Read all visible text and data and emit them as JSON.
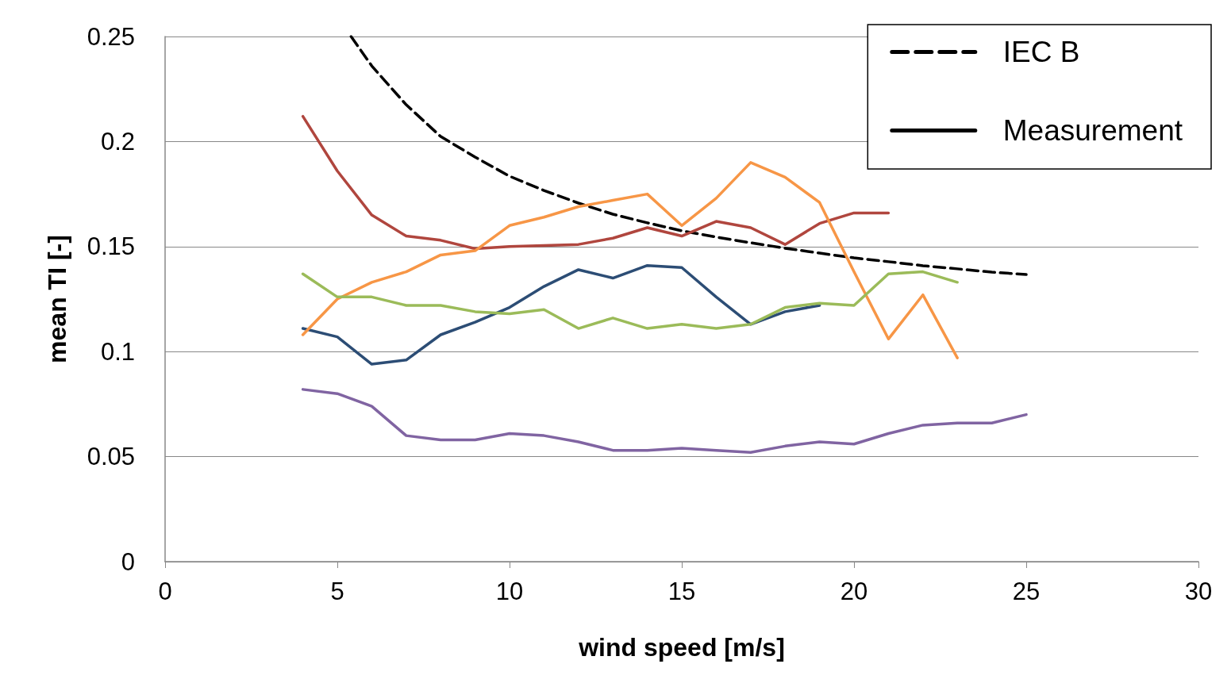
{
  "chart_data": {
    "type": "line",
    "xlabel": "wind speed [m/s]",
    "ylabel": "mean TI [-]",
    "xlim": [
      0,
      30
    ],
    "xticks": [
      0,
      5,
      10,
      15,
      20,
      25,
      30
    ],
    "ylim": [
      0,
      0.25
    ],
    "yticks": [
      0,
      0.05,
      0.1,
      0.15,
      0.2,
      0.25
    ],
    "grid": "y",
    "legend": "top right",
    "marker": "none",
    "line_style": "solid",
    "series": [
      {
        "name": "IEC B",
        "color": "#000000",
        "line_style": "dashed",
        "x": [
          5.4,
          6,
          7,
          8,
          9,
          10,
          11,
          12,
          13,
          14,
          15,
          16,
          17,
          18,
          19,
          20,
          21,
          22,
          23,
          24,
          25
        ],
        "values": [
          0.25,
          0.236,
          0.2175,
          0.2024,
          0.1926,
          0.1835,
          0.1767,
          0.1707,
          0.1654,
          0.1613,
          0.1575,
          0.1545,
          0.1518,
          0.1492,
          0.1469,
          0.1446,
          0.1428,
          0.1409,
          0.1394,
          0.1378,
          0.1367
        ]
      },
      {
        "name": "Measurement",
        "color": "#000000"
      },
      {
        "color": "#2c4d75",
        "x": [
          4,
          5,
          6,
          7,
          8,
          9,
          10,
          11,
          12,
          13,
          14,
          15,
          16,
          17,
          18,
          19
        ],
        "values": [
          0.111,
          0.107,
          0.094,
          0.096,
          0.108,
          0.114,
          0.121,
          0.131,
          0.139,
          0.135,
          0.141,
          0.14,
          0.126,
          0.113,
          0.119,
          0.122
        ]
      },
      {
        "color": "#b0463e",
        "x": [
          4,
          5,
          6,
          7,
          8,
          9,
          10,
          11,
          12,
          13,
          14,
          15,
          16,
          17,
          18,
          19,
          20,
          21
        ],
        "values": [
          0.212,
          0.186,
          0.165,
          0.155,
          0.153,
          0.149,
          0.15,
          0.1505,
          0.151,
          0.154,
          0.159,
          0.155,
          0.162,
          0.159,
          0.151,
          0.161,
          0.166,
          0.166
        ]
      },
      {
        "color": "#f79646",
        "x": [
          4,
          5,
          6,
          7,
          8,
          9,
          10,
          11,
          12,
          13,
          14,
          15,
          16,
          17,
          18,
          19,
          20,
          21,
          22,
          23
        ],
        "values": [
          0.108,
          0.125,
          0.133,
          0.138,
          0.146,
          0.148,
          0.16,
          0.164,
          0.169,
          0.172,
          0.175,
          0.16,
          0.173,
          0.19,
          0.183,
          0.171,
          0.138,
          0.106,
          0.127,
          0.097
        ]
      },
      {
        "color": "#9bbb59",
        "x": [
          4,
          5,
          6,
          7,
          8,
          9,
          10,
          11,
          12,
          13,
          14,
          15,
          16,
          17,
          18,
          19,
          20,
          21,
          22,
          23
        ],
        "values": [
          0.137,
          0.126,
          0.126,
          0.122,
          0.122,
          0.119,
          0.118,
          0.12,
          0.111,
          0.116,
          0.111,
          0.113,
          0.111,
          0.113,
          0.121,
          0.123,
          0.122,
          0.137,
          0.138,
          0.133
        ]
      },
      {
        "color": "#8064a2",
        "x": [
          4,
          5,
          6,
          7,
          8,
          9,
          10,
          11,
          12,
          13,
          14,
          15,
          16,
          17,
          18,
          19,
          20,
          21,
          22,
          23,
          24,
          25
        ],
        "values": [
          0.082,
          0.08,
          0.074,
          0.06,
          0.058,
          0.058,
          0.061,
          0.06,
          0.057,
          0.053,
          0.053,
          0.054,
          0.053,
          0.052,
          0.055,
          0.057,
          0.056,
          0.061,
          0.065,
          0.066,
          0.066,
          0.07
        ]
      }
    ]
  }
}
